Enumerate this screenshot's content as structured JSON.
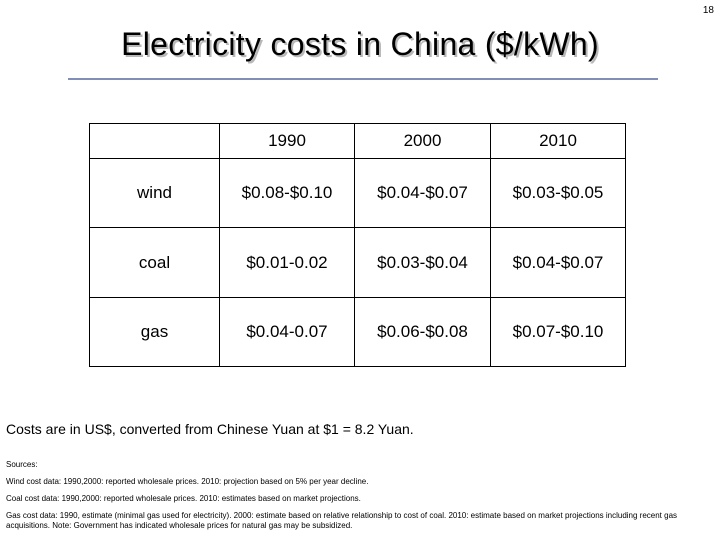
{
  "slide_number": "18",
  "title": "Electricity costs in China ($/kWh)",
  "table": {
    "columns": [
      "",
      "1990",
      "2000",
      "2010"
    ],
    "rows": [
      {
        "label": "wind",
        "values": [
          "$0.08-$0.10",
          "$0.04-$0.07",
          "$0.03-$0.05"
        ]
      },
      {
        "label": "coal",
        "values": [
          "$0.01-0.02",
          "$0.03-$0.04",
          "$0.04-$0.07"
        ]
      },
      {
        "label": "gas",
        "values": [
          "$0.04-0.07",
          "$0.06-$0.08",
          "$0.07-$0.10"
        ]
      }
    ]
  },
  "note": "Costs are in US$, converted from Chinese Yuan at $1 = 8.2 Yuan.",
  "sources": {
    "heading": "Sources:",
    "items": [
      "Wind cost data: 1990,2000: reported wholesale prices. 2010: projection based on 5% per year decline.",
      "Coal cost data: 1990,2000: reported wholesale prices. 2010: estimates based on market projections.",
      "Gas cost data: 1990, estimate (minimal gas used for electricity). 2000: estimate based on relative relationship to cost of coal. 2010: estimate based on market projections including recent gas acquisitions. Note: Government has indicated wholesale prices for natural gas may be subsidized."
    ]
  }
}
